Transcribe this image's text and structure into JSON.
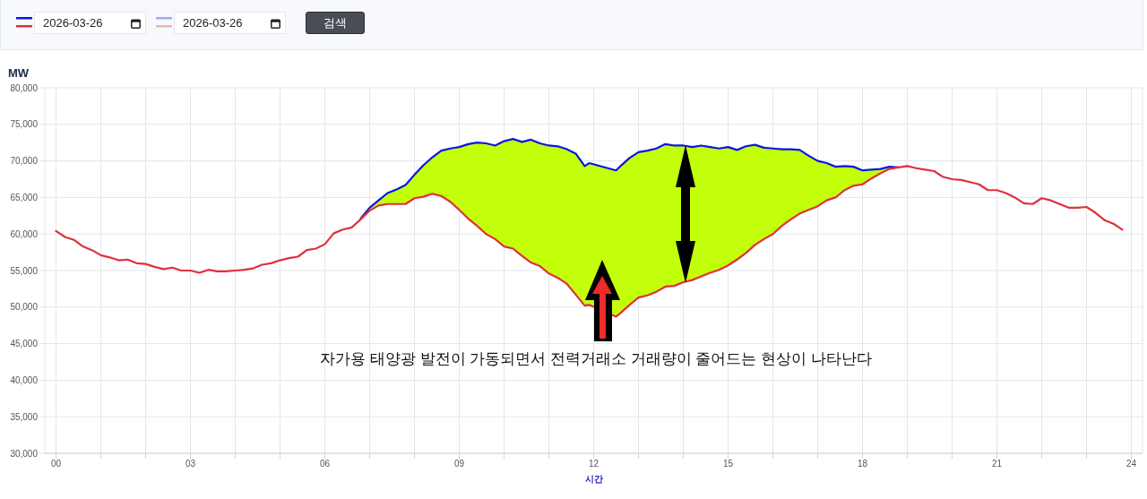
{
  "chart_data": {
    "type": "line",
    "xlabel": "시간",
    "ylabel": "MW",
    "annotations": [
      "2026-03-26",
      "2026-03-26",
      "검색",
      "자가용 태양광 발전이 가동되면서 전력거래소 거래량이 줄어드는 현상이 나타난다"
    ],
    "x": [
      0,
      0.2,
      0.4,
      0.6,
      0.8,
      1,
      1.2,
      1.4,
      1.6,
      1.8,
      2,
      2.2,
      2.4,
      2.6,
      2.8,
      3,
      3.2,
      3.4,
      3.6,
      3.8,
      4,
      4.2,
      4.4,
      4.6,
      4.8,
      5,
      5.2,
      5.4,
      5.6,
      5.8,
      6,
      6.2,
      6.4,
      6.6,
      6.8,
      7,
      7.2,
      7.4,
      7.6,
      7.8,
      8,
      8.2,
      8.4,
      8.6,
      8.8,
      9,
      9.2,
      9.4,
      9.6,
      9.8,
      10,
      10.2,
      10.4,
      10.6,
      10.8,
      11,
      11.2,
      11.4,
      11.6,
      11.8,
      11.9,
      12.5,
      12.6,
      12.8,
      13,
      13.2,
      13.4,
      13.6,
      13.8,
      14,
      14.2,
      14.4,
      14.6,
      14.8,
      15,
      15.2,
      15.4,
      15.6,
      15.8,
      16,
      16.2,
      16.4,
      16.6,
      16.8,
      17,
      17.2,
      17.4,
      17.6,
      17.8,
      18,
      18.2,
      18.4,
      18.6,
      18.8,
      19,
      19.2,
      19.4,
      19.6,
      19.8,
      20,
      20.2,
      20.4,
      20.6,
      20.8,
      21,
      21.2,
      21.4,
      21.6,
      21.8,
      22,
      22.2,
      22.4,
      22.6,
      22.8,
      23,
      23.2,
      23.4,
      23.6,
      23.8
    ],
    "series": [
      {
        "color": "#0a14e6",
        "x": [
          6.8,
          7,
          7.2,
          7.4,
          7.6,
          7.8,
          8,
          8.2,
          8.4,
          8.6,
          8.8,
          9,
          9.2,
          9.4,
          9.6,
          9.8,
          10,
          10.2,
          10.4,
          10.6,
          10.8,
          11,
          11.2,
          11.4,
          11.6,
          11.8,
          11.9,
          12.5,
          12.6,
          12.8,
          13,
          13.2,
          13.4,
          13.6,
          13.8,
          14,
          14.2,
          14.4,
          14.6,
          14.8,
          15,
          15.2,
          15.4,
          15.6,
          15.8,
          16,
          16.2,
          16.4,
          16.6,
          16.8,
          17,
          17.2,
          17.4,
          17.6,
          17.8,
          18,
          18.2,
          18.4,
          18.6,
          18.8
        ],
        "values": [
          62100,
          63600,
          64600,
          65600,
          66100,
          66700,
          68100,
          69400,
          70500,
          71400,
          71700,
          71900,
          72300,
          72500,
          72400,
          72100,
          72700,
          73000,
          72600,
          72900,
          72400,
          72100,
          72000,
          71600,
          71000,
          69300,
          69700,
          68700,
          69300,
          70400,
          71200,
          71400,
          71700,
          72300,
          72100,
          72100,
          71900,
          72100,
          71900,
          71700,
          71900,
          71500,
          72000,
          72200,
          71800,
          71700,
          71600,
          71600,
          71500,
          70700,
          70000,
          69700,
          69200,
          69300,
          69200,
          68700,
          68800,
          68900,
          69200,
          69100
        ],
        "lower": [
          62000,
          63200,
          63900,
          64100,
          64100,
          64100,
          64900,
          65100,
          65500,
          65200,
          64400,
          63300,
          62100,
          61100,
          60000,
          59300,
          58300,
          58000,
          57000,
          56100,
          55600,
          54600,
          54000,
          53200,
          51700,
          50200,
          50300,
          48700,
          49200,
          50300,
          51300,
          51600,
          52100,
          52800,
          52900,
          53400,
          53700,
          54200,
          54700,
          55100,
          55700,
          56500,
          57400,
          58500,
          59300,
          60000,
          61100,
          62000,
          62800,
          63300,
          63800,
          64600,
          65000,
          66000,
          66600,
          66800,
          67600,
          68300,
          68900,
          69100
        ],
        "upper": [
          62100,
          63600,
          64600,
          65600,
          66100,
          66700,
          68100,
          69400,
          70500,
          71400,
          71700,
          71900,
          72300,
          72500,
          72400,
          72100,
          72700,
          73000,
          72600,
          72900,
          72400,
          72100,
          72000,
          71600,
          71000,
          69300,
          69700,
          68700,
          69300,
          70400,
          71200,
          71400,
          71700,
          72300,
          72100,
          72100,
          71900,
          72100,
          71900,
          71700,
          71900,
          71500,
          72000,
          72200,
          71800,
          71700,
          71600,
          71600,
          71500,
          70700,
          70000,
          69700,
          69200,
          69300,
          69200,
          68700,
          68800,
          68900,
          69200,
          69100
        ]
      },
      {
        "color": "#e0303c",
        "values": [
          60400,
          59600,
          59200,
          58300,
          57800,
          57100,
          56800,
          56400,
          56500,
          56000,
          55900,
          55500,
          55200,
          55400,
          55000,
          55000,
          54700,
          55100,
          54900,
          54900,
          55000,
          55100,
          55300,
          55800,
          56000,
          56400,
          56700,
          56900,
          57800,
          58000,
          58600,
          60100,
          60600,
          60900,
          62000,
          63200,
          63900,
          64100,
          64100,
          64100,
          64900,
          65100,
          65500,
          65200,
          64400,
          63300,
          62100,
          61100,
          60000,
          59300,
          58300,
          58000,
          57000,
          56100,
          55600,
          54600,
          54000,
          53200,
          51700,
          50200,
          50300,
          48700,
          49200,
          50300,
          51300,
          51600,
          52100,
          52800,
          52900,
          53400,
          53700,
          54200,
          54700,
          55100,
          55700,
          56500,
          57400,
          58500,
          59300,
          60000,
          61100,
          62000,
          62800,
          63300,
          63800,
          64600,
          65000,
          66000,
          66600,
          66800,
          67600,
          68300,
          68900,
          69100,
          69300,
          69000,
          68800,
          68600,
          67800,
          67500,
          67400,
          67100,
          66800,
          66000,
          66000,
          65600,
          65000,
          64200,
          64100,
          64900,
          64600,
          64100,
          63600,
          63600,
          63700,
          62900,
          61900,
          61400,
          60600
        ]
      }
    ],
    "xlim": [
      -0.25,
      24.25
    ],
    "xticks": [
      {
        "value": 0,
        "label": "00"
      },
      {
        "value": 1,
        "label": null
      },
      {
        "value": 2,
        "label": null
      },
      {
        "value": 3,
        "label": "03"
      },
      {
        "value": 4,
        "label": null
      },
      {
        "value": 5,
        "label": null
      },
      {
        "value": 6,
        "label": "06"
      },
      {
        "value": 7,
        "label": null
      },
      {
        "value": 8,
        "label": null
      },
      {
        "value": 9,
        "label": "09"
      },
      {
        "value": 10,
        "label": null
      },
      {
        "value": 11,
        "label": null
      },
      {
        "value": 12,
        "label": "12"
      },
      {
        "value": 13,
        "label": null
      },
      {
        "value": 14,
        "label": null
      },
      {
        "value": 15,
        "label": "15"
      },
      {
        "value": 16,
        "label": null
      },
      {
        "value": 17,
        "label": null
      },
      {
        "value": 18,
        "label": "18"
      },
      {
        "value": 19,
        "label": null
      },
      {
        "value": 20,
        "label": null
      },
      {
        "value": 21,
        "label": "21"
      },
      {
        "value": 22,
        "label": null
      },
      {
        "value": 23,
        "label": null
      },
      {
        "value": 24,
        "label": "24"
      }
    ],
    "ylim": [
      30000,
      80000
    ],
    "yticks": [
      {
        "value": 30000,
        "label": "30,000"
      },
      {
        "value": 35000,
        "label": "35,000"
      },
      {
        "value": 40000,
        "label": "40,000"
      },
      {
        "value": 45000,
        "label": "45,000"
      },
      {
        "value": 50000,
        "label": "50,000"
      },
      {
        "value": 55000,
        "label": "55,000"
      },
      {
        "value": 60000,
        "label": "60,000"
      },
      {
        "value": 65000,
        "label": "65,000"
      },
      {
        "value": 70000,
        "label": "70,000"
      },
      {
        "value": 75000,
        "label": "75,000"
      },
      {
        "value": 80000,
        "label": "80,000"
      }
    ],
    "grid": true
  }
}
